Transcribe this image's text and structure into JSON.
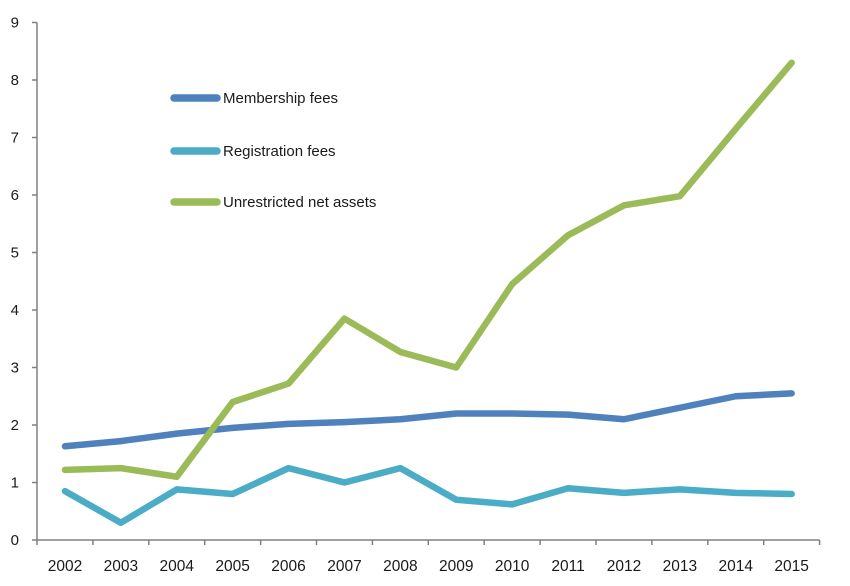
{
  "chart_data": {
    "type": "line",
    "title": "",
    "x": [
      2002,
      2003,
      2004,
      2005,
      2006,
      2007,
      2008,
      2009,
      2010,
      2011,
      2012,
      2013,
      2014,
      2015
    ],
    "series": [
      {
        "name": "Membership fees",
        "color": "#4F81BD",
        "values": [
          1.63,
          1.72,
          1.85,
          1.95,
          2.02,
          2.05,
          2.1,
          2.2,
          2.2,
          2.18,
          2.1,
          2.3,
          2.5,
          2.55
        ]
      },
      {
        "name": "Registration fees",
        "color": "#4BACC6",
        "values": [
          0.85,
          0.3,
          0.88,
          0.8,
          1.25,
          1.0,
          1.25,
          0.7,
          0.62,
          0.9,
          0.82,
          0.88,
          0.82,
          0.8
        ]
      },
      {
        "name": "Unrestricted net assets",
        "color": "#9BBB59",
        "values": [
          1.22,
          1.25,
          1.1,
          2.4,
          2.72,
          3.85,
          3.27,
          3.0,
          4.45,
          5.3,
          5.82,
          5.98,
          7.15,
          8.3
        ]
      }
    ],
    "ylim": [
      0,
      9
    ],
    "ytick_step": 1,
    "grid": false,
    "legend_position": "upper-left-inside",
    "axis_color": "#808080",
    "label_color": "#1a1a1a"
  }
}
